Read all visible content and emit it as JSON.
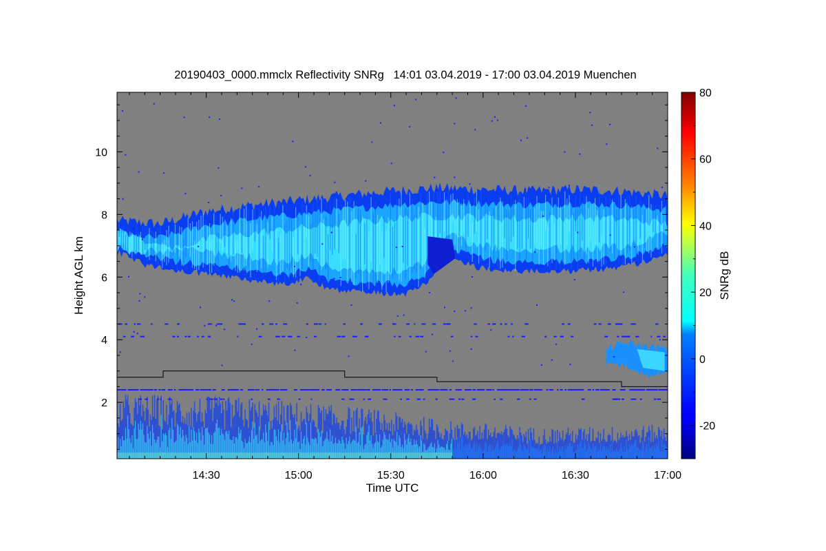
{
  "chart_data": {
    "type": "heatmap",
    "title": "20190403_0000.mmclx Reflectivity SNRg   14:01 03.04.2019 - 17:00 03.04.2019 Muenchen",
    "xlabel": "Time UTC",
    "ylabel": "Height AGL km",
    "x_ticks": [
      "14:30",
      "15:00",
      "15:30",
      "16:00",
      "16:30",
      "17:00"
    ],
    "x_tick_values_min": [
      870,
      900,
      930,
      960,
      990,
      1020
    ],
    "xlim_min": [
      841,
      1020
    ],
    "y_ticks": [
      "2",
      "4",
      "6",
      "8",
      "10"
    ],
    "y_tick_values": [
      2,
      4,
      6,
      8,
      10
    ],
    "ylim": [
      0.2,
      11.9
    ],
    "background_color": "#808080",
    "colorbar": {
      "label": "SNRg dB",
      "ticks": [
        "-20",
        "0",
        "20",
        "40",
        "60",
        "80"
      ],
      "tick_values": [
        -20,
        0,
        20,
        40,
        60,
        80
      ],
      "range": [
        -30,
        80
      ],
      "colormap": "jet"
    },
    "cloud_top_km": [
      [
        841,
        7.8
      ],
      [
        855,
        7.7
      ],
      [
        870,
        8.1
      ],
      [
        885,
        8.3
      ],
      [
        900,
        8.45
      ],
      [
        915,
        8.6
      ],
      [
        930,
        8.75
      ],
      [
        945,
        8.85
      ],
      [
        960,
        8.8
      ],
      [
        975,
        8.75
      ],
      [
        990,
        8.8
      ],
      [
        1005,
        8.75
      ],
      [
        1020,
        8.6
      ]
    ],
    "cloud_base_km": [
      [
        841,
        6.8
      ],
      [
        850,
        6.4
      ],
      [
        860,
        6.2
      ],
      [
        875,
        6.05
      ],
      [
        885,
        5.9
      ],
      [
        895,
        5.75
      ],
      [
        903,
        6.0
      ],
      [
        910,
        5.6
      ],
      [
        925,
        5.5
      ],
      [
        935,
        5.45
      ],
      [
        942,
        5.8
      ],
      [
        948,
        6.7
      ],
      [
        958,
        6.3
      ],
      [
        970,
        6.2
      ],
      [
        990,
        6.2
      ],
      [
        1005,
        6.3
      ],
      [
        1020,
        6.7
      ]
    ],
    "lower_cloud": {
      "start_min": 1000,
      "end_min": 1020,
      "top_km": 4.0,
      "base_km": 2.8
    },
    "boundary_layer_top_km": [
      [
        841,
        1.9
      ],
      [
        880,
        1.8
      ],
      [
        920,
        1.5
      ],
      [
        950,
        1.1
      ],
      [
        980,
        0.9
      ],
      [
        1020,
        1.0
      ]
    ],
    "black_line_km": [
      [
        841,
        2.8
      ],
      [
        856,
        2.8
      ],
      [
        856,
        3.0
      ],
      [
        915,
        3.0
      ],
      [
        915,
        2.8
      ],
      [
        945,
        2.8
      ],
      [
        945,
        2.66
      ],
      [
        1005,
        2.66
      ],
      [
        1005,
        2.5
      ],
      [
        1020,
        2.5
      ]
    ],
    "noise_layer_heights_km": [
      2.4,
      2.1,
      4.1,
      4.5
    ]
  }
}
